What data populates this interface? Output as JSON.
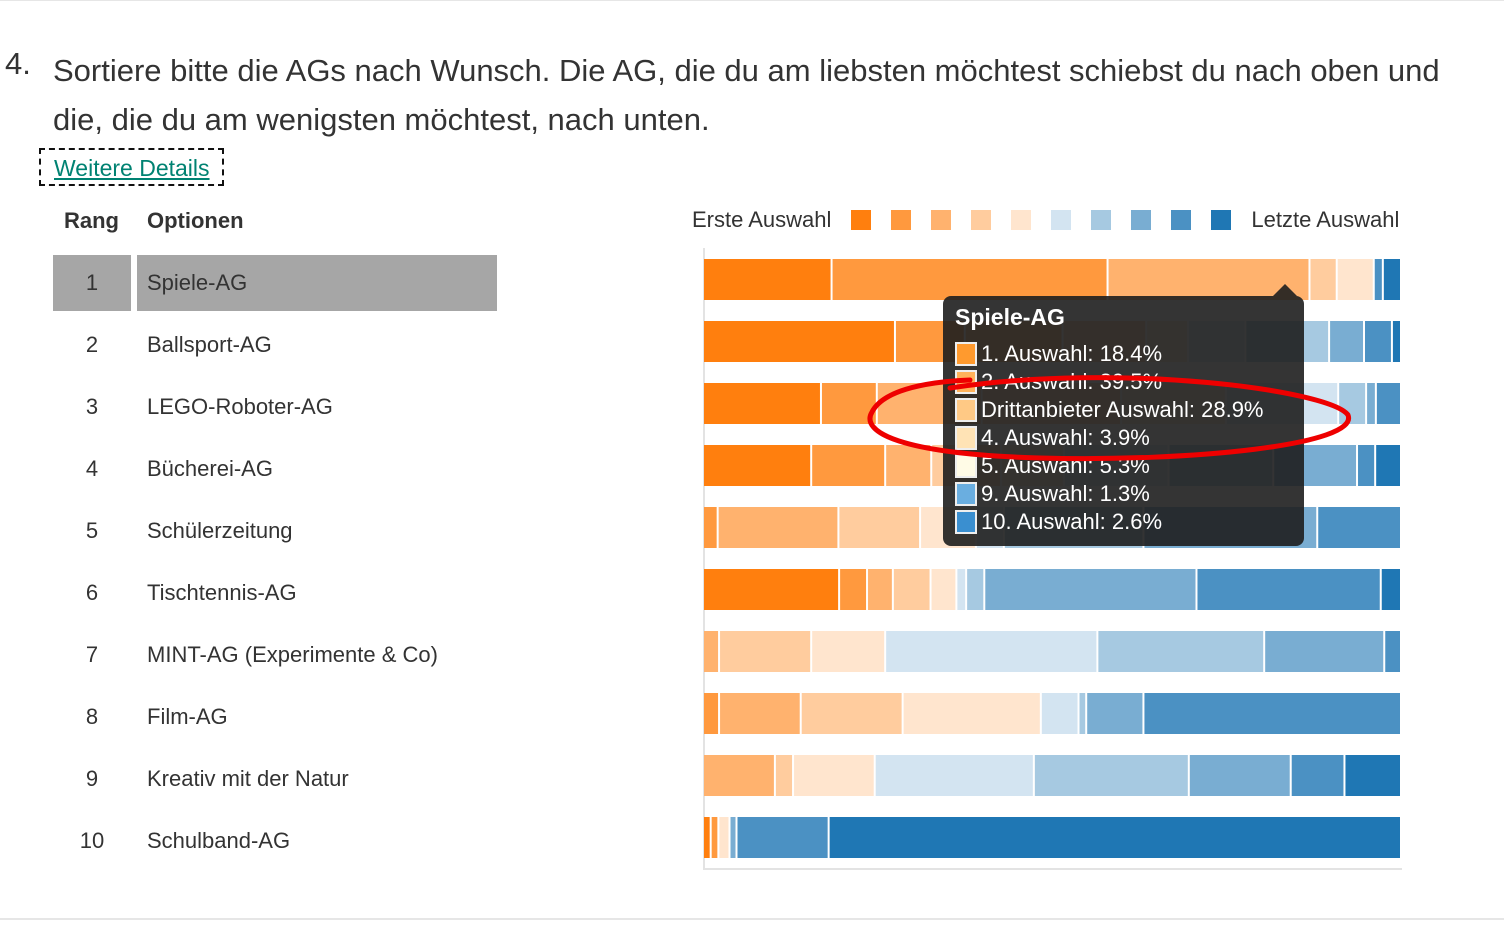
{
  "question": {
    "number": "4.",
    "text": "Sortiere bitte die AGs nach Wunsch. Die AG, die du am liebsten möchtest schiebst du nach oben und die, die du am wenigsten möchtest, nach unten.",
    "details_link": "Weitere Details"
  },
  "table": {
    "headers": {
      "rank": "Rang",
      "options": "Optionen"
    },
    "selected_index": 0,
    "rows": [
      {
        "rank": "1",
        "option": "Spiele-AG"
      },
      {
        "rank": "2",
        "option": "Ballsport-AG"
      },
      {
        "rank": "3",
        "option": "LEGO-Roboter-AG"
      },
      {
        "rank": "4",
        "option": "Bücherei-AG"
      },
      {
        "rank": "5",
        "option": "Schülerzeitung"
      },
      {
        "rank": "6",
        "option": "Tischtennis-AG"
      },
      {
        "rank": "7",
        "option": "MINT-AG (Experimente & Co)"
      },
      {
        "rank": "8",
        "option": "Film-AG"
      },
      {
        "rank": "9",
        "option": "Kreativ mit der Natur"
      },
      {
        "rank": "10",
        "option": "Schulband-AG"
      }
    ]
  },
  "chart_data": {
    "type": "bar",
    "stacked": true,
    "orientation": "horizontal",
    "unit": "%",
    "legend": {
      "start_label": "Erste Auswahl",
      "end_label": "Letzte Auswahl",
      "placement": "top"
    },
    "colors": [
      "#ff7f0e",
      "#ff993e",
      "#ffb26e",
      "#ffcc9e",
      "#ffe5ce",
      "#d3e4f1",
      "#a6c9e1",
      "#79add2",
      "#4b91c3",
      "#1f77b4"
    ],
    "categories": [
      "Spiele-AG",
      "Ballsport-AG",
      "LEGO-Roboter-AG",
      "Bücherei-AG",
      "Schülerzeitung",
      "Tischtennis-AG",
      "MINT-AG (Experimente & Co)",
      "Film-AG",
      "Kreativ mit der Natur",
      "Schulband-AG"
    ],
    "series_by_rank": [
      [
        18.4,
        39.5,
        28.9,
        3.9,
        5.3,
        0,
        0,
        0,
        1.3,
        2.6
      ],
      [
        27.5,
        10,
        14,
        12,
        6,
        8.2,
        12,
        5,
        4,
        1.3
      ],
      [
        16.9,
        8,
        15,
        20,
        15,
        16.1,
        4,
        1.4,
        3.6,
        0
      ],
      [
        15.5,
        10.6,
        6.6,
        10,
        9,
        15,
        15,
        12,
        2.6,
        3.7
      ],
      [
        0,
        2.1,
        17.3,
        11.7,
        8,
        4,
        20,
        24.9,
        12,
        0
      ],
      [
        19.5,
        4,
        3.7,
        5.4,
        3.7,
        1.4,
        2.6,
        30.4,
        26.4,
        2.9
      ],
      [
        0,
        0,
        2.3,
        13.2,
        10.6,
        30.4,
        23.9,
        17.2,
        2.4,
        0
      ],
      [
        0,
        2.3,
        11.7,
        14.6,
        19.8,
        5.4,
        1.1,
        8.2,
        36.9,
        0
      ],
      [
        0,
        0,
        10.3,
        2.6,
        11.7,
        22.8,
        22.2,
        14.6,
        7.7,
        8.1
      ],
      [
        1.1,
        1.1,
        0,
        0,
        1.6,
        0,
        0,
        1,
        13.2,
        82
      ]
    ]
  },
  "tooltip": {
    "title": "Spiele-AG",
    "lines": [
      {
        "label": "1. Auswahl: 18.4%",
        "color": "#ff9a2e"
      },
      {
        "label": "2. Auswahl: 39.5%",
        "color": "#ffb25b"
      },
      {
        "label": "Drittanbieter Auswahl: 28.9%",
        "color": "#ffc985"
      },
      {
        "label": "4. Auswahl: 3.9%",
        "color": "#ffe3b5"
      },
      {
        "label": "5. Auswahl: 5.3%",
        "color": "#fffbe6"
      },
      {
        "label": "9. Auswahl: 1.3%",
        "color": "#6aaee0"
      },
      {
        "label": "10. Auswahl: 2.6%",
        "color": "#3a8fd0"
      }
    ]
  },
  "annotation_color": "#ee0000"
}
